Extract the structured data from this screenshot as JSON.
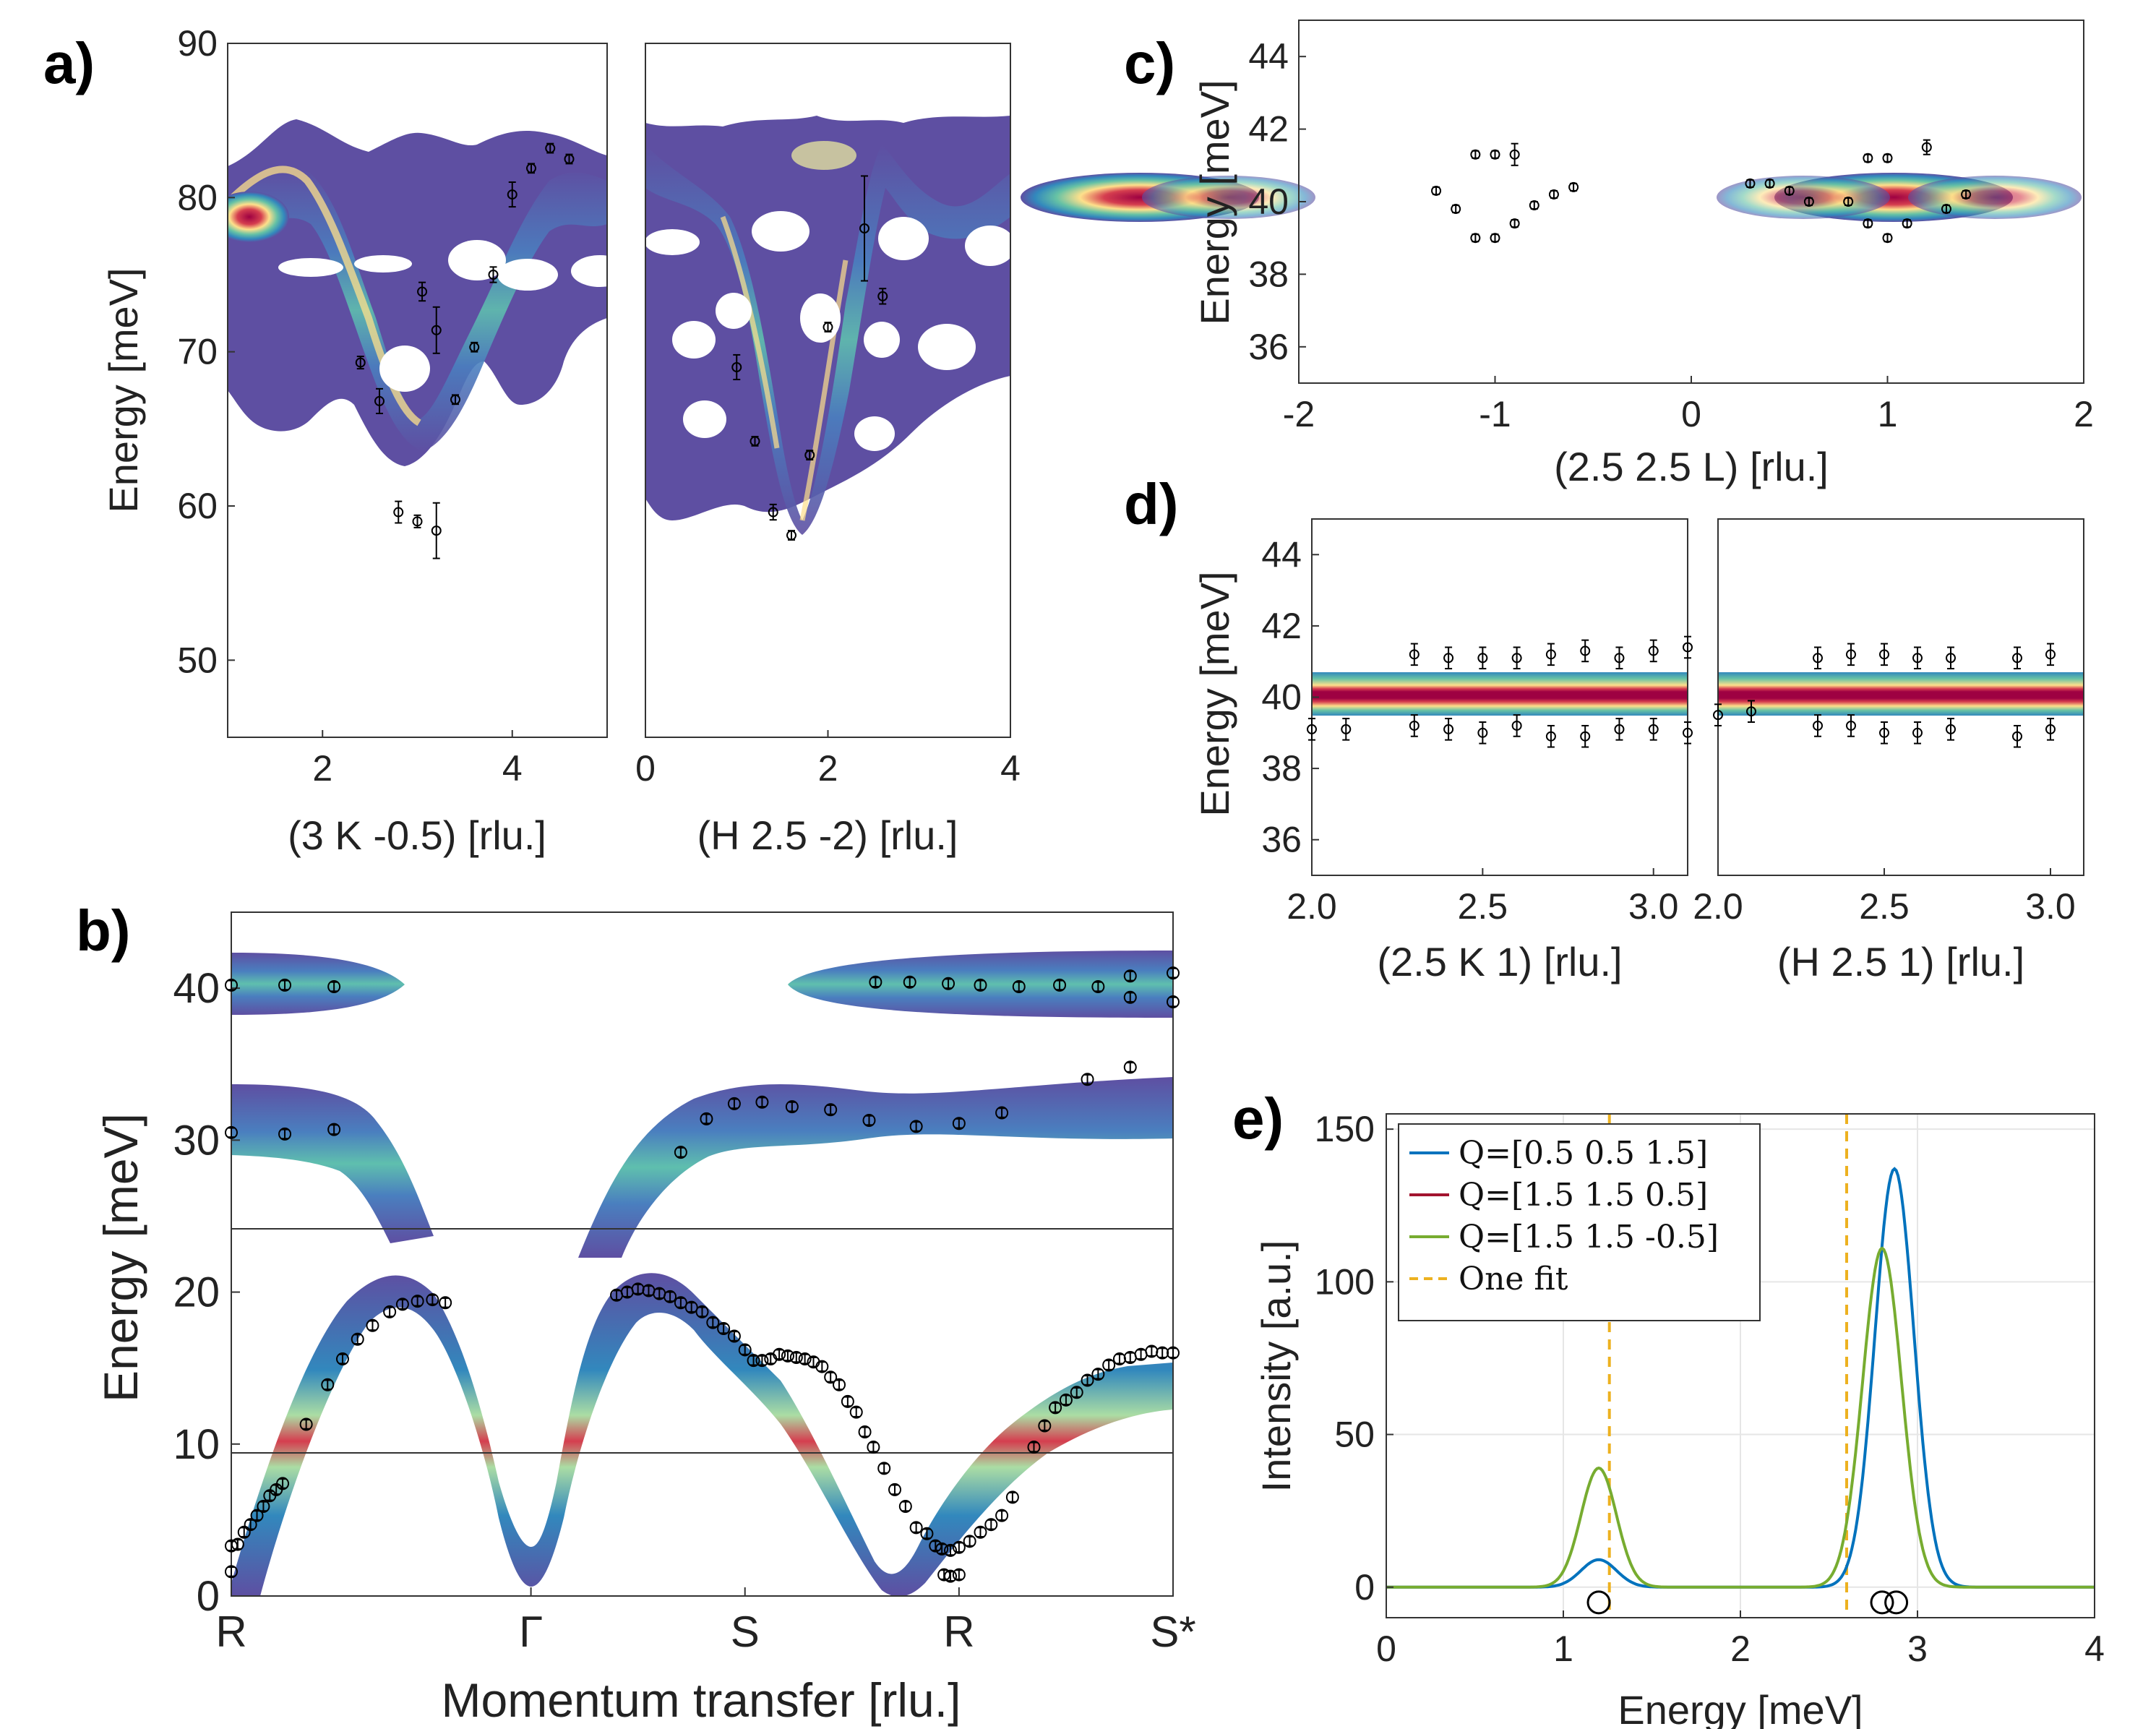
{
  "panel_labels": {
    "a": "a)",
    "b": "b)",
    "c": "c)",
    "d": "d)",
    "e": "e)"
  },
  "colors": {
    "map_low": "#5e4fa2",
    "map_mid": "#66c2a5",
    "map_high": "#fee08b",
    "map_peak": "#9e0142",
    "line_blue": "#0072bd",
    "line_red": "#a2142f",
    "line_green": "#77ac30",
    "line_orange": "#edb120"
  },
  "chart_data": [
    {
      "id": "a_left",
      "type": "heatmap",
      "xlabel": "(3 K -0.5) [rlu.]",
      "ylabel": "Energy [meV]",
      "xlim": [
        1,
        5
      ],
      "ylim": [
        45,
        90
      ],
      "xticks": [
        2,
        4
      ],
      "yticks": [
        50,
        60,
        70,
        80,
        90
      ],
      "points": [
        [
          2.4,
          69.3
        ],
        [
          2.6,
          66.8
        ],
        [
          2.8,
          59.6
        ],
        [
          3.0,
          59.0
        ],
        [
          3.05,
          73.9
        ],
        [
          3.2,
          71.4
        ],
        [
          3.2,
          58.4
        ],
        [
          3.4,
          66.9
        ],
        [
          3.6,
          70.3
        ],
        [
          3.8,
          75.0
        ],
        [
          4.0,
          80.2
        ],
        [
          4.2,
          81.9
        ],
        [
          4.4,
          83.2
        ],
        [
          4.6,
          82.5
        ]
      ],
      "errors": [
        0.4,
        0.8,
        0.7,
        0.4,
        0.6,
        1.5,
        1.8,
        0.3,
        0.3,
        0.5,
        0.8,
        0.3,
        0.3,
        0.3
      ]
    },
    {
      "id": "a_right",
      "type": "heatmap",
      "xlabel": "(H 2.5 -2) [rlu.]",
      "ylabel": "",
      "xlim": [
        0,
        4
      ],
      "ylim": [
        45,
        90
      ],
      "xticks": [
        0,
        2,
        4
      ],
      "yticks": [],
      "points": [
        [
          1.0,
          69.0
        ],
        [
          1.2,
          64.2
        ],
        [
          1.4,
          59.6
        ],
        [
          1.6,
          58.1
        ],
        [
          1.8,
          63.3
        ],
        [
          2.0,
          71.6
        ],
        [
          2.4,
          78.0
        ],
        [
          2.6,
          73.6
        ]
      ],
      "errors": [
        0.8,
        0.3,
        0.5,
        0.3,
        0.3,
        0.3,
        3.4,
        0.5
      ]
    },
    {
      "id": "b",
      "type": "heatmap",
      "xlabel": "Momentum transfer [rlu.]",
      "ylabel": "Energy [meV]",
      "ylim": [
        0,
        45
      ],
      "yticks": [
        0,
        10,
        20,
        30,
        40
      ],
      "xticklabels": [
        "R",
        "Γ",
        "S",
        "R",
        "S*"
      ],
      "xtick_positions": [
        0,
        1.4,
        2.4,
        3.4,
        4.4
      ],
      "xlim": [
        0,
        4.4
      ],
      "points": [
        [
          0.0,
          1.6
        ],
        [
          0.0,
          3.3
        ],
        [
          0.03,
          3.4
        ],
        [
          0.06,
          4.2
        ],
        [
          0.09,
          4.7
        ],
        [
          0.12,
          5.3
        ],
        [
          0.15,
          5.9
        ],
        [
          0.18,
          6.6
        ],
        [
          0.21,
          7.0
        ],
        [
          0.24,
          7.4
        ],
        [
          0.35,
          11.3
        ],
        [
          0.45,
          13.9
        ],
        [
          0.52,
          15.6
        ],
        [
          0.59,
          16.9
        ],
        [
          0.66,
          17.8
        ],
        [
          0.74,
          18.7
        ],
        [
          0.8,
          19.2
        ],
        [
          0.87,
          19.4
        ],
        [
          0.94,
          19.5
        ],
        [
          1.0,
          19.3
        ],
        [
          1.8,
          19.8
        ],
        [
          1.85,
          20.0
        ],
        [
          1.9,
          20.2
        ],
        [
          1.95,
          20.1
        ],
        [
          2.0,
          19.9
        ],
        [
          2.05,
          19.7
        ],
        [
          2.1,
          19.3
        ],
        [
          2.15,
          19.0
        ],
        [
          2.2,
          18.7
        ],
        [
          2.25,
          18.0
        ],
        [
          2.3,
          17.6
        ],
        [
          2.35,
          17.1
        ],
        [
          2.4,
          16.2
        ],
        [
          2.44,
          15.5
        ],
        [
          2.48,
          15.5
        ],
        [
          2.52,
          15.6
        ],
        [
          2.56,
          15.9
        ],
        [
          2.6,
          15.8
        ],
        [
          2.64,
          15.7
        ],
        [
          2.68,
          15.6
        ],
        [
          2.72,
          15.4
        ],
        [
          2.76,
          15.1
        ],
        [
          2.8,
          14.4
        ],
        [
          2.84,
          13.9
        ],
        [
          2.88,
          12.8
        ],
        [
          2.92,
          12.1
        ],
        [
          2.96,
          10.8
        ],
        [
          3.0,
          9.8
        ],
        [
          3.05,
          8.4
        ],
        [
          3.1,
          7.0
        ],
        [
          3.15,
          5.9
        ],
        [
          3.2,
          4.5
        ],
        [
          3.25,
          4.1
        ],
        [
          3.29,
          3.3
        ],
        [
          3.32,
          3.1
        ],
        [
          3.36,
          3.0
        ],
        [
          3.4,
          3.2
        ],
        [
          3.45,
          3.6
        ],
        [
          3.5,
          4.2
        ],
        [
          3.55,
          4.7
        ],
        [
          3.6,
          5.3
        ],
        [
          3.65,
          6.5
        ],
        [
          3.33,
          1.4
        ],
        [
          3.36,
          1.3
        ],
        [
          3.4,
          1.4
        ],
        [
          3.75,
          9.8
        ],
        [
          3.8,
          11.2
        ],
        [
          3.85,
          12.4
        ],
        [
          3.9,
          12.9
        ],
        [
          3.95,
          13.4
        ],
        [
          4.0,
          14.2
        ],
        [
          4.05,
          14.6
        ],
        [
          4.1,
          15.2
        ],
        [
          4.15,
          15.6
        ],
        [
          4.2,
          15.7
        ],
        [
          4.25,
          15.9
        ],
        [
          4.3,
          16.1
        ],
        [
          4.35,
          16.0
        ],
        [
          4.4,
          16.0
        ],
        [
          0.0,
          30.5
        ],
        [
          0.25,
          30.4
        ],
        [
          0.48,
          30.7
        ],
        [
          2.1,
          29.2
        ],
        [
          2.22,
          31.4
        ],
        [
          2.35,
          32.4
        ],
        [
          2.48,
          32.5
        ],
        [
          2.62,
          32.2
        ],
        [
          2.8,
          32.0
        ],
        [
          2.98,
          31.3
        ],
        [
          3.2,
          30.9
        ],
        [
          3.4,
          31.1
        ],
        [
          3.6,
          31.8
        ],
        [
          4.0,
          34.0
        ],
        [
          4.2,
          34.8
        ],
        [
          0.0,
          40.2
        ],
        [
          0.25,
          40.2
        ],
        [
          0.48,
          40.1
        ],
        [
          3.01,
          40.4
        ],
        [
          3.17,
          40.4
        ],
        [
          3.35,
          40.3
        ],
        [
          3.5,
          40.2
        ],
        [
          3.68,
          40.1
        ],
        [
          3.87,
          40.2
        ],
        [
          4.05,
          40.1
        ],
        [
          4.2,
          40.8
        ],
        [
          4.2,
          39.4
        ],
        [
          4.4,
          41.0
        ],
        [
          4.4,
          39.1
        ]
      ],
      "errors": []
    },
    {
      "id": "c",
      "type": "heatmap",
      "xlabel": "(2.5 2.5 L) [rlu.]",
      "ylabel": "Energy [meV]",
      "xlim": [
        -2,
        2
      ],
      "ylim": [
        35,
        45
      ],
      "xticks": [
        -2,
        -1,
        0,
        1,
        2
      ],
      "yticks": [
        36,
        38,
        40,
        42,
        44
      ],
      "points": [
        [
          -1.3,
          40.3
        ],
        [
          -1.2,
          39.8
        ],
        [
          -1.1,
          41.3
        ],
        [
          -1.1,
          39.0
        ],
        [
          -1.0,
          41.3
        ],
        [
          -1.0,
          39.0
        ],
        [
          -0.9,
          41.3
        ],
        [
          -0.9,
          39.4
        ],
        [
          -0.8,
          39.9
        ],
        [
          -0.7,
          40.2
        ],
        [
          -0.6,
          40.4
        ],
        [
          0.3,
          40.5
        ],
        [
          0.4,
          40.5
        ],
        [
          0.5,
          40.3
        ],
        [
          0.6,
          40.0
        ],
        [
          0.8,
          40.0
        ],
        [
          0.9,
          41.2
        ],
        [
          0.9,
          39.4
        ],
        [
          1.0,
          41.2
        ],
        [
          1.0,
          39.0
        ],
        [
          1.1,
          39.4
        ],
        [
          1.2,
          41.5
        ],
        [
          1.3,
          39.8
        ],
        [
          1.4,
          40.2
        ]
      ],
      "errors": [
        0.1,
        0.1,
        0.1,
        0.1,
        0.1,
        0.1,
        0.3,
        0.1,
        0.1,
        0.1,
        0.1,
        0.1,
        0.1,
        0.1,
        0.1,
        0.1,
        0.1,
        0.1,
        0.1,
        0.1,
        0.1,
        0.2,
        0.1,
        0.1
      ]
    },
    {
      "id": "d_left",
      "type": "heatmap",
      "xlabel": "(2.5 K 1) [rlu.]",
      "ylabel": "Energy [meV]",
      "xlim": [
        2.0,
        3.1
      ],
      "ylim": [
        35,
        45
      ],
      "xticks": [
        2.0,
        2.5,
        3.0
      ],
      "xticklabels": [
        "2.0",
        "2.5",
        "3.0"
      ],
      "yticks": [
        36,
        38,
        40,
        42,
        44
      ],
      "points": [
        [
          2.0,
          39.1
        ],
        [
          2.1,
          39.1
        ],
        [
          2.3,
          41.2
        ],
        [
          2.3,
          39.2
        ],
        [
          2.4,
          41.1
        ],
        [
          2.4,
          39.1
        ],
        [
          2.5,
          41.1
        ],
        [
          2.5,
          39.0
        ],
        [
          2.6,
          41.1
        ],
        [
          2.6,
          39.2
        ],
        [
          2.7,
          41.2
        ],
        [
          2.7,
          38.9
        ],
        [
          2.8,
          41.3
        ],
        [
          2.8,
          38.9
        ],
        [
          2.9,
          41.1
        ],
        [
          2.9,
          39.1
        ],
        [
          3.0,
          41.3
        ],
        [
          3.0,
          39.1
        ],
        [
          3.1,
          41.4
        ],
        [
          3.1,
          39.0
        ]
      ],
      "errors": []
    },
    {
      "id": "d_right",
      "type": "heatmap",
      "xlabel": "(H 2.5 1) [rlu.]",
      "ylabel": "",
      "xlim": [
        2.0,
        3.1
      ],
      "ylim": [
        35,
        45
      ],
      "xticks": [
        2.0,
        2.5,
        3.0
      ],
      "xticklabels": [
        "2.0",
        "2.5",
        "3.0"
      ],
      "yticks": [],
      "points": [
        [
          2.0,
          39.5
        ],
        [
          2.1,
          39.6
        ],
        [
          2.3,
          41.1
        ],
        [
          2.3,
          39.2
        ],
        [
          2.4,
          41.2
        ],
        [
          2.4,
          39.2
        ],
        [
          2.5,
          41.2
        ],
        [
          2.5,
          39.0
        ],
        [
          2.6,
          41.1
        ],
        [
          2.6,
          39.0
        ],
        [
          2.7,
          41.1
        ],
        [
          2.7,
          39.1
        ],
        [
          2.9,
          41.1
        ],
        [
          2.9,
          38.9
        ],
        [
          3.0,
          41.2
        ],
        [
          3.0,
          39.1
        ]
      ],
      "errors": []
    },
    {
      "id": "e",
      "type": "line",
      "xlabel": "Energy [meV]",
      "ylabel": "Intensity [a.u.]",
      "xlim": [
        0,
        4
      ],
      "ylim": [
        -10,
        155
      ],
      "xticks": [
        0,
        1,
        2,
        3,
        4
      ],
      "yticks": [
        0,
        50,
        100,
        150
      ],
      "grid": true,
      "legend_location": "top-left",
      "series": [
        {
          "name": "Q=[0.5 0.5 1.5]",
          "color": "#0072bd",
          "peaks": [
            [
              1.2,
              9,
              0.1
            ],
            [
              2.87,
              137,
              0.11
            ]
          ]
        },
        {
          "name": "Q=[1.5 1.5 0.5]",
          "color": "#a2142f",
          "peaks": []
        },
        {
          "name": "Q=[1.5 1.5 -0.5]",
          "color": "#77ac30",
          "peaks": [
            [
              1.2,
              39,
              0.1
            ],
            [
              2.8,
              111,
              0.11
            ]
          ]
        }
      ],
      "reference_lines": {
        "name": "One fit",
        "color": "#edb120",
        "x": [
          1.26,
          2.6
        ]
      },
      "markers": [
        [
          1.2,
          -5
        ],
        [
          2.8,
          -5
        ],
        [
          2.88,
          -5
        ]
      ]
    }
  ]
}
